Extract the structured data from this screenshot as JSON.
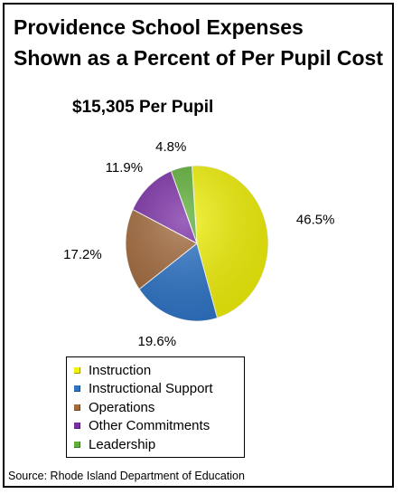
{
  "chart_data": {
    "type": "pie",
    "title": [
      "Providence School Expenses",
      "Shown as a Percent of Per Pupil Cost"
    ],
    "subtitle": "$15,305 Per Pupil",
    "categories": [
      "Instruction",
      "Instructional Support",
      "Operations",
      "Other Commitments",
      "Leadership"
    ],
    "values": [
      46.5,
      19.6,
      17.2,
      11.9,
      4.8
    ],
    "data_labels": [
      "46.5%",
      "19.6%",
      "17.2%",
      "11.9%",
      "4.8%"
    ],
    "colors": [
      "#f2f20a",
      "#2e75c8",
      "#a36a3c",
      "#7b2fa6",
      "#5fb038"
    ],
    "legend_position": "bottom",
    "source": "Source: Rhode Island Department of Education"
  }
}
